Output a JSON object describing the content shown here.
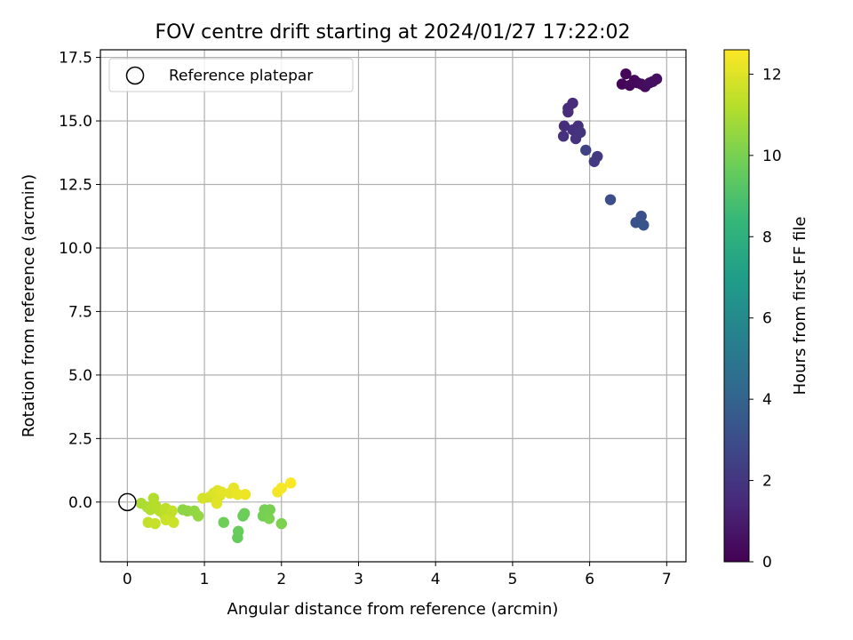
{
  "chart_data": {
    "type": "scatter",
    "title": "FOV centre drift starting at 2024/01/27 17:22:02",
    "xlabel": "Angular distance from reference (arcmin)",
    "ylabel": "Rotation from reference (arcmin)",
    "xlim": [
      -0.35,
      7.25
    ],
    "ylim": [
      -2.35,
      17.8
    ],
    "xticks": [
      "0",
      "1",
      "2",
      "3",
      "4",
      "5",
      "6",
      "7"
    ],
    "yticks": [
      "0.0",
      "2.5",
      "5.0",
      "7.5",
      "10.0",
      "12.5",
      "15.0",
      "17.5"
    ],
    "grid": true,
    "legend": {
      "position": "top-left",
      "entries": [
        "Reference platepar"
      ]
    },
    "reference_point": {
      "x": 0,
      "y": 0
    },
    "colorbar": {
      "label": "Hours from first FF file",
      "range": [
        0,
        12.6
      ],
      "ticks": [
        "0",
        "2",
        "4",
        "6",
        "8",
        "10",
        "12"
      ],
      "colormap": "viridis",
      "stops": [
        "#440154",
        "#482878",
        "#3e4989",
        "#31688e",
        "#26828e",
        "#1f9e89",
        "#35b779",
        "#6ece58",
        "#b5de2b",
        "#fde725"
      ]
    },
    "points": [
      {
        "x": 6.42,
        "y": 16.45,
        "t": 0.1
      },
      {
        "x": 6.47,
        "y": 16.85,
        "t": 0.15
      },
      {
        "x": 6.52,
        "y": 16.4,
        "t": 0.2
      },
      {
        "x": 6.58,
        "y": 16.6,
        "t": 0.25
      },
      {
        "x": 6.62,
        "y": 16.5,
        "t": 0.3
      },
      {
        "x": 6.67,
        "y": 16.45,
        "t": 0.35
      },
      {
        "x": 6.72,
        "y": 16.35,
        "t": 0.4
      },
      {
        "x": 6.78,
        "y": 16.5,
        "t": 0.45
      },
      {
        "x": 6.82,
        "y": 16.55,
        "t": 0.5
      },
      {
        "x": 6.87,
        "y": 16.65,
        "t": 0.55
      },
      {
        "x": 5.78,
        "y": 15.7,
        "t": 1.5
      },
      {
        "x": 5.72,
        "y": 15.5,
        "t": 1.55
      },
      {
        "x": 5.72,
        "y": 15.35,
        "t": 1.6
      },
      {
        "x": 5.67,
        "y": 14.8,
        "t": 1.65
      },
      {
        "x": 5.78,
        "y": 14.65,
        "t": 1.7
      },
      {
        "x": 5.85,
        "y": 14.8,
        "t": 1.75
      },
      {
        "x": 5.66,
        "y": 14.4,
        "t": 1.8
      },
      {
        "x": 5.82,
        "y": 14.3,
        "t": 1.85
      },
      {
        "x": 5.88,
        "y": 14.55,
        "t": 1.9
      },
      {
        "x": 6.1,
        "y": 13.6,
        "t": 2.1
      },
      {
        "x": 6.06,
        "y": 13.4,
        "t": 2.15
      },
      {
        "x": 5.95,
        "y": 13.85,
        "t": 2.5
      },
      {
        "x": 6.27,
        "y": 11.9,
        "t": 3.0
      },
      {
        "x": 6.67,
        "y": 11.25,
        "t": 3.1
      },
      {
        "x": 6.6,
        "y": 11.0,
        "t": 3.2
      },
      {
        "x": 6.7,
        "y": 10.9,
        "t": 3.3
      },
      {
        "x": 1.43,
        "y": -1.4,
        "t": 9.6
      },
      {
        "x": 1.44,
        "y": -1.15,
        "t": 9.65
      },
      {
        "x": 1.5,
        "y": -0.55,
        "t": 9.7
      },
      {
        "x": 1.52,
        "y": -0.45,
        "t": 9.75
      },
      {
        "x": 1.25,
        "y": -0.8,
        "t": 9.8
      },
      {
        "x": 1.76,
        "y": -0.55,
        "t": 9.85
      },
      {
        "x": 1.8,
        "y": -0.45,
        "t": 9.9
      },
      {
        "x": 1.78,
        "y": -0.3,
        "t": 9.95
      },
      {
        "x": 1.85,
        "y": -0.3,
        "t": 10.0
      },
      {
        "x": 1.84,
        "y": -0.65,
        "t": 10.05
      },
      {
        "x": 2.0,
        "y": -0.85,
        "t": 10.1
      },
      {
        "x": 0.72,
        "y": -0.3,
        "t": 10.4
      },
      {
        "x": 0.78,
        "y": -0.35,
        "t": 10.45
      },
      {
        "x": 0.87,
        "y": -0.35,
        "t": 10.5
      },
      {
        "x": 0.92,
        "y": -0.55,
        "t": 10.55
      },
      {
        "x": 0.18,
        "y": -0.05,
        "t": 11.0
      },
      {
        "x": 0.26,
        "y": -0.2,
        "t": 11.05
      },
      {
        "x": 0.3,
        "y": -0.3,
        "t": 11.1
      },
      {
        "x": 0.34,
        "y": 0.15,
        "t": 11.15
      },
      {
        "x": 0.37,
        "y": -0.15,
        "t": 11.2
      },
      {
        "x": 0.42,
        "y": -0.35,
        "t": 11.25
      },
      {
        "x": 0.48,
        "y": -0.5,
        "t": 11.3
      },
      {
        "x": 0.5,
        "y": -0.25,
        "t": 11.35
      },
      {
        "x": 0.55,
        "y": -0.55,
        "t": 11.4
      },
      {
        "x": 0.58,
        "y": -0.35,
        "t": 11.45
      },
      {
        "x": 0.27,
        "y": -0.8,
        "t": 11.5
      },
      {
        "x": 0.36,
        "y": -0.85,
        "t": 11.55
      },
      {
        "x": 0.5,
        "y": -0.7,
        "t": 11.6
      },
      {
        "x": 0.6,
        "y": -0.8,
        "t": 11.65
      },
      {
        "x": 0.98,
        "y": 0.15,
        "t": 11.8
      },
      {
        "x": 1.07,
        "y": 0.2,
        "t": 11.85
      },
      {
        "x": 1.12,
        "y": 0.35,
        "t": 11.9
      },
      {
        "x": 1.17,
        "y": 0.45,
        "t": 11.95
      },
      {
        "x": 1.2,
        "y": 0.25,
        "t": 12.0
      },
      {
        "x": 1.16,
        "y": -0.05,
        "t": 12.05
      },
      {
        "x": 1.22,
        "y": 0.4,
        "t": 12.1
      },
      {
        "x": 1.33,
        "y": 0.35,
        "t": 12.15
      },
      {
        "x": 1.38,
        "y": 0.55,
        "t": 12.2
      },
      {
        "x": 1.43,
        "y": 0.3,
        "t": 12.25
      },
      {
        "x": 1.53,
        "y": 0.3,
        "t": 12.3
      },
      {
        "x": 1.95,
        "y": 0.4,
        "t": 12.4
      },
      {
        "x": 2.0,
        "y": 0.55,
        "t": 12.45
      },
      {
        "x": 2.12,
        "y": 0.75,
        "t": 12.55
      }
    ]
  }
}
